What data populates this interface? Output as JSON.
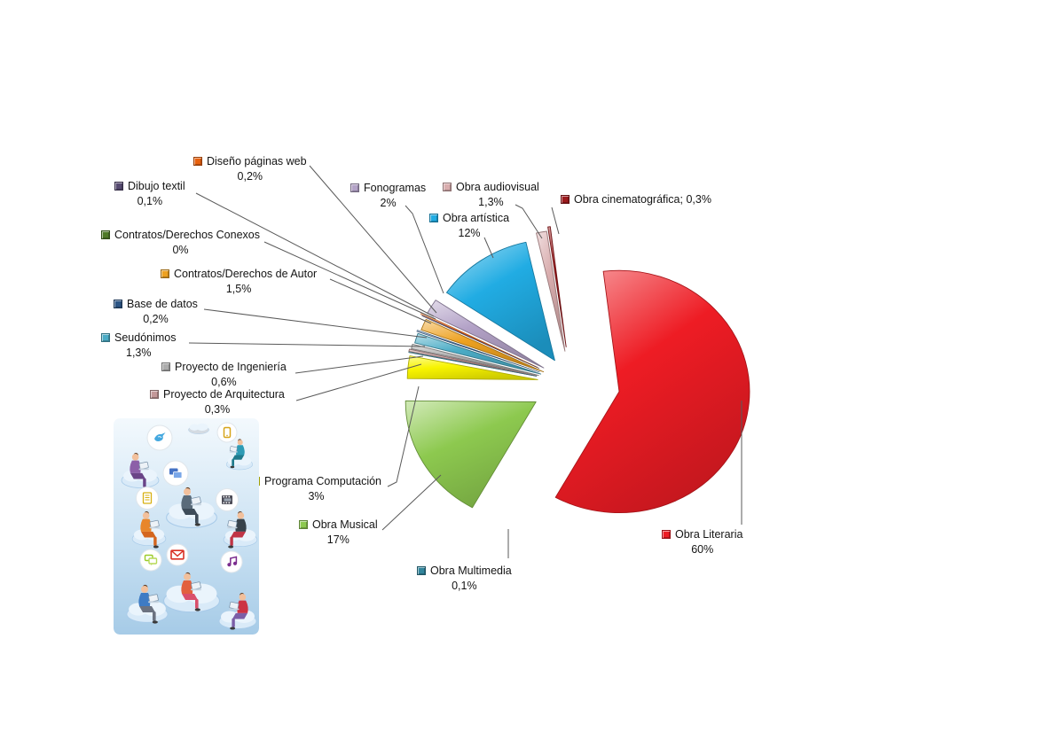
{
  "page": {
    "background": "#FFFFFF"
  },
  "chart_data": {
    "type": "pie",
    "title": "",
    "exploded": true,
    "direction": "clockwise",
    "start_angle_deg": 0,
    "legend_position": "callout-labels",
    "slices": [
      {
        "label": "Obra Literaria",
        "value_pct": 60,
        "value_text": "60%",
        "color": "#EE1C24"
      },
      {
        "label": "Obra Musical",
        "value_pct": 17,
        "value_text": "17%",
        "color": "#8DC94F"
      },
      {
        "label": "Programa Computación",
        "value_pct": 3,
        "value_text": "3%",
        "color": "#F8F400"
      },
      {
        "label": "Obra Multimedia",
        "value_pct": 0.1,
        "value_text": "0,1%",
        "color": "#31859C"
      },
      {
        "label": "Proyecto de Arquitectura",
        "value_pct": 0.3,
        "value_text": "0,3%",
        "color": "#C49899"
      },
      {
        "label": "Proyecto de Ingeniería",
        "value_pct": 0.6,
        "value_text": "0,6%",
        "color": "#ACACAC",
        "texture": "dotted"
      },
      {
        "label": "Seudónimos",
        "value_pct": 1.3,
        "value_text": "1,3%",
        "color": "#4BACC6"
      },
      {
        "label": "Base de datos",
        "value_pct": 0.2,
        "value_text": "0,2%",
        "color": "#2C5585"
      },
      {
        "label": "Contratos/Derechos de Autor",
        "value_pct": 1.5,
        "value_text": "1,5%",
        "color": "#EDA120"
      },
      {
        "label": "Contratos/Derechos Conexos",
        "value_pct": 0,
        "value_text": "0%",
        "color": "#4F7A28"
      },
      {
        "label": "Dibujo textil",
        "value_pct": 0.1,
        "value_text": "0,1%",
        "color": "#564A70"
      },
      {
        "label": "Diseño páginas web",
        "value_pct": 0.2,
        "value_text": "0,2%",
        "color": "#E8610E"
      },
      {
        "label": "Fonogramas",
        "value_pct": 2,
        "value_text": "2%",
        "color": "#B3A2C7"
      },
      {
        "label": "Obra artística",
        "value_pct": 12,
        "value_text": "12%",
        "color": "#21ACE3"
      },
      {
        "label": "Obra audiovisual",
        "value_pct": 1.3,
        "value_text": "1,3%",
        "color": "#D9ADAE"
      },
      {
        "label": "Obra cinematográfica",
        "value_pct": 0.3,
        "value_text": "0,3%",
        "color": "#9C1A1D",
        "display": "Obra cinematográfica; 0,3%"
      }
    ]
  },
  "illustration": {
    "alt": "People sitting on clouds using laptops and tablets",
    "badge_icons": [
      "bird-icon",
      "tablet-icon",
      "slides-icon",
      "document-icon",
      "film-icon",
      "chat-icon",
      "envelope-icon",
      "music-note-icon"
    ]
  }
}
